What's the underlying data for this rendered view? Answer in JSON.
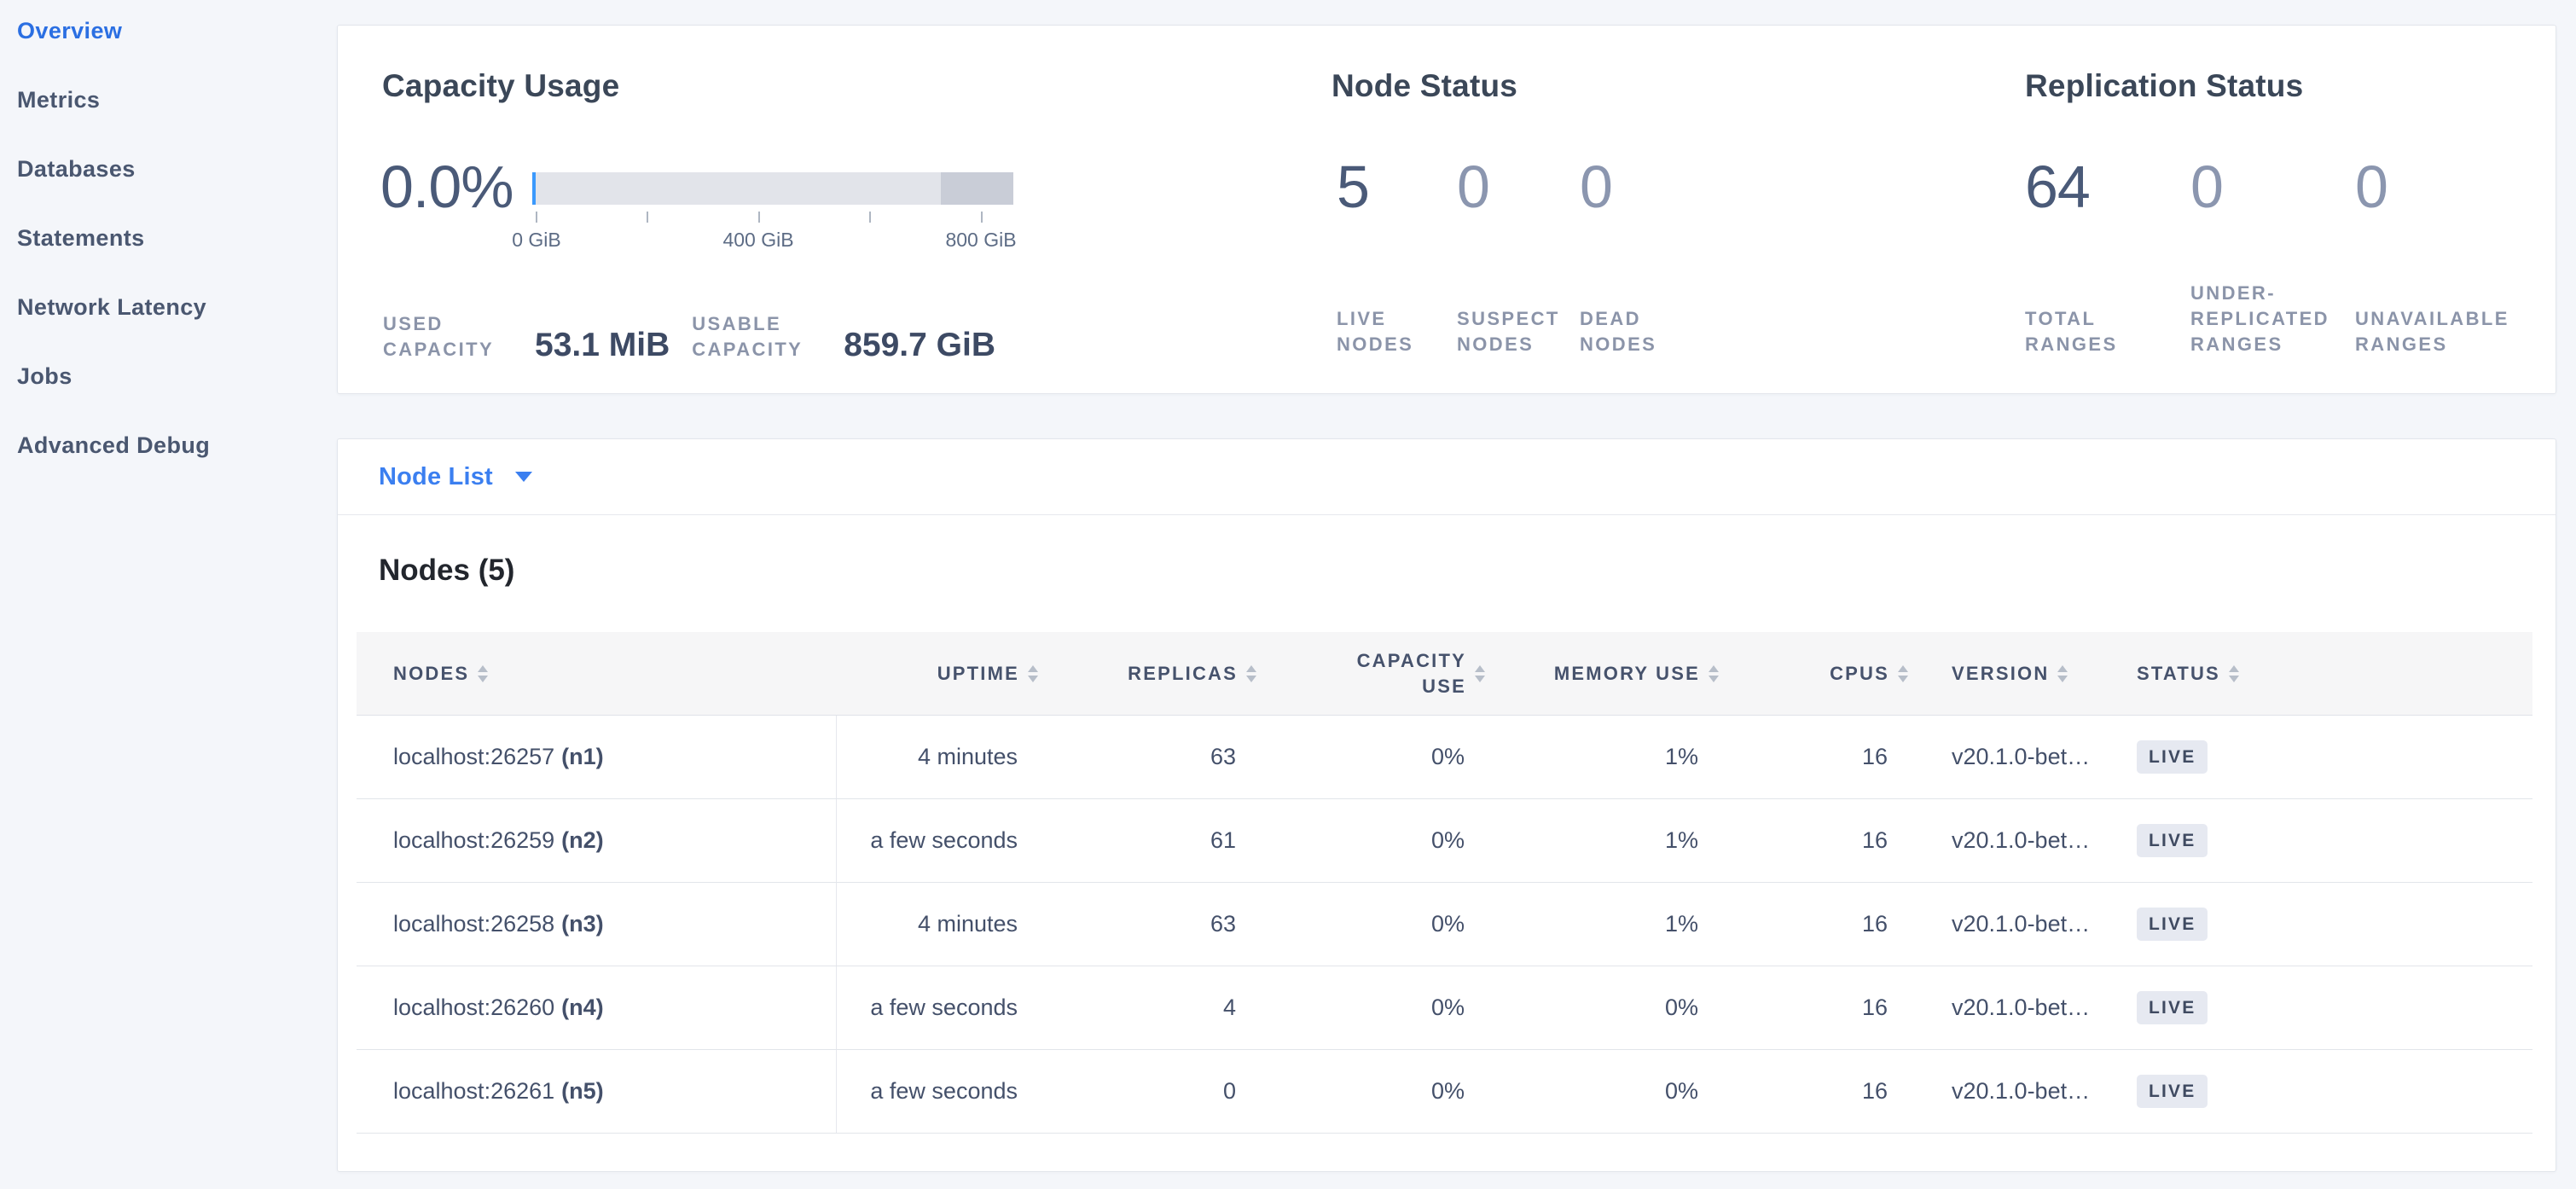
{
  "sidebar": {
    "items": [
      {
        "label": "Overview",
        "active": true
      },
      {
        "label": "Metrics",
        "active": false
      },
      {
        "label": "Databases",
        "active": false
      },
      {
        "label": "Statements",
        "active": false
      },
      {
        "label": "Network Latency",
        "active": false
      },
      {
        "label": "Jobs",
        "active": false
      },
      {
        "label": "Advanced Debug",
        "active": false
      }
    ]
  },
  "capacity": {
    "title": "Capacity Usage",
    "percent": "0.0%",
    "gauge": {
      "tick_labels": [
        "0 GiB",
        "400 GiB",
        "800 GiB"
      ]
    },
    "stats": [
      {
        "label": "USED CAPACITY",
        "value": "53.1 MiB"
      },
      {
        "label": "USABLE CAPACITY",
        "value": "859.7 GiB"
      }
    ]
  },
  "node_status": {
    "title": "Node Status",
    "stats": [
      {
        "value": "5",
        "label": "LIVE NODES"
      },
      {
        "value": "0",
        "label": "SUSPECT NODES"
      },
      {
        "value": "0",
        "label": "DEAD NODES"
      }
    ]
  },
  "replication": {
    "title": "Replication Status",
    "stats": [
      {
        "value": "64",
        "label": "TOTAL RANGES"
      },
      {
        "value": "0",
        "label": "UNDER-REPLICATED RANGES"
      },
      {
        "value": "0",
        "label": "UNAVAILABLE RANGES"
      }
    ]
  },
  "node_list": {
    "dropdown_label": "Node List",
    "table_title": "Nodes (5)",
    "columns": [
      "NODES",
      "UPTIME",
      "REPLICAS",
      "CAPACITY USE",
      "MEMORY USE",
      "CPUS",
      "VERSION",
      "STATUS"
    ],
    "rows": [
      {
        "node": "localhost:26257",
        "id": "(n1)",
        "uptime": "4 minutes",
        "replicas": "63",
        "capacity_use": "0%",
        "memory_use": "1%",
        "cpus": "16",
        "version": "v20.1.0-bet…",
        "status": "LIVE"
      },
      {
        "node": "localhost:26259",
        "id": "(n2)",
        "uptime": "a few seconds",
        "replicas": "61",
        "capacity_use": "0%",
        "memory_use": "1%",
        "cpus": "16",
        "version": "v20.1.0-bet…",
        "status": "LIVE"
      },
      {
        "node": "localhost:26258",
        "id": "(n3)",
        "uptime": "4 minutes",
        "replicas": "63",
        "capacity_use": "0%",
        "memory_use": "1%",
        "cpus": "16",
        "version": "v20.1.0-bet…",
        "status": "LIVE"
      },
      {
        "node": "localhost:26260",
        "id": "(n4)",
        "uptime": "a few seconds",
        "replicas": "4",
        "capacity_use": "0%",
        "memory_use": "0%",
        "cpus": "16",
        "version": "v20.1.0-bet…",
        "status": "LIVE"
      },
      {
        "node": "localhost:26261",
        "id": "(n5)",
        "uptime": "a few seconds",
        "replicas": "0",
        "capacity_use": "0%",
        "memory_use": "0%",
        "cpus": "16",
        "version": "v20.1.0-bet…",
        "status": "LIVE"
      }
    ]
  },
  "colors": {
    "accent_blue": "#2b6fe2",
    "link_blue": "#3b7ff0",
    "badge_bg": "#e6e9f1",
    "gauge_light": "#e2e4ea",
    "gauge_dark": "#c9cdd7",
    "gauge_used_blue": "#3b99fc"
  }
}
